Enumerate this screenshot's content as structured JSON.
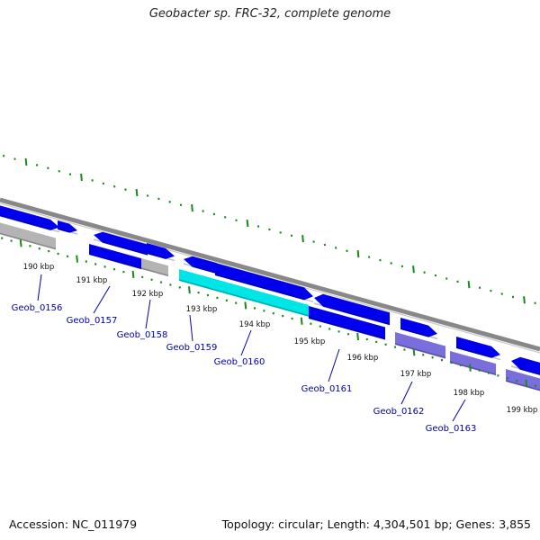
{
  "title": "Geobacter sp. FRC-32, complete genome",
  "accession_label": "Accession: NC_011979",
  "topology_label": "Topology: circular; Length: 4,304,501 bp; Genes: 3,855",
  "colors": {
    "backbone": "#888888",
    "gene_blue": "#0000ee",
    "gene_gray": "#b4b4b4",
    "gene_cyan": "#00e6e6",
    "gene_purple": "#7a6edc",
    "tick": "#1a8a1a",
    "label_blue": "#0000aa"
  },
  "ruler_ticks": [
    "190 kbp",
    "191 kbp",
    "192 kbp",
    "193 kbp",
    "194 kbp",
    "195 kbp",
    "196 kbp",
    "197 kbp",
    "198 kbp",
    "199 kbp"
  ],
  "gene_labels": [
    "Geob_0156",
    "Geob_0157",
    "Geob_0158",
    "Geob_0159",
    "Geob_0160",
    "Geob_0161",
    "Geob_0162",
    "Geob_0163"
  ]
}
